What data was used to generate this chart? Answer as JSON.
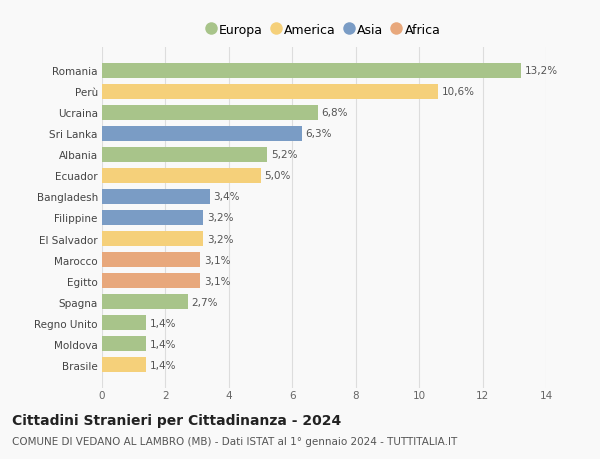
{
  "countries": [
    "Romania",
    "Perù",
    "Ucraina",
    "Sri Lanka",
    "Albania",
    "Ecuador",
    "Bangladesh",
    "Filippine",
    "El Salvador",
    "Marocco",
    "Egitto",
    "Spagna",
    "Regno Unito",
    "Moldova",
    "Brasile"
  ],
  "values": [
    13.2,
    10.6,
    6.8,
    6.3,
    5.2,
    5.0,
    3.4,
    3.2,
    3.2,
    3.1,
    3.1,
    2.7,
    1.4,
    1.4,
    1.4
  ],
  "labels": [
    "13,2%",
    "10,6%",
    "6,8%",
    "6,3%",
    "5,2%",
    "5,0%",
    "3,4%",
    "3,2%",
    "3,2%",
    "3,1%",
    "3,1%",
    "2,7%",
    "1,4%",
    "1,4%",
    "1,4%"
  ],
  "continents": [
    "Europa",
    "America",
    "Europa",
    "Asia",
    "Europa",
    "America",
    "Asia",
    "Asia",
    "America",
    "Africa",
    "Africa",
    "Europa",
    "Europa",
    "Europa",
    "America"
  ],
  "colors": {
    "Europa": "#a8c48a",
    "America": "#f5d07a",
    "Asia": "#7a9cc5",
    "Africa": "#e8a87c"
  },
  "legend_order": [
    "Europa",
    "America",
    "Asia",
    "Africa"
  ],
  "xlim": [
    0,
    14
  ],
  "xticks": [
    0,
    2,
    4,
    6,
    8,
    10,
    12,
    14
  ],
  "title": "Cittadini Stranieri per Cittadinanza - 2024",
  "subtitle": "COMUNE DI VEDANO AL LAMBRO (MB) - Dati ISTAT al 1° gennaio 2024 - TUTTITALIA.IT",
  "bg_color": "#f9f9f9",
  "grid_color": "#dddddd",
  "bar_height": 0.72,
  "label_fontsize": 7.5,
  "tick_fontsize": 7.5,
  "title_fontsize": 10,
  "subtitle_fontsize": 7.5
}
